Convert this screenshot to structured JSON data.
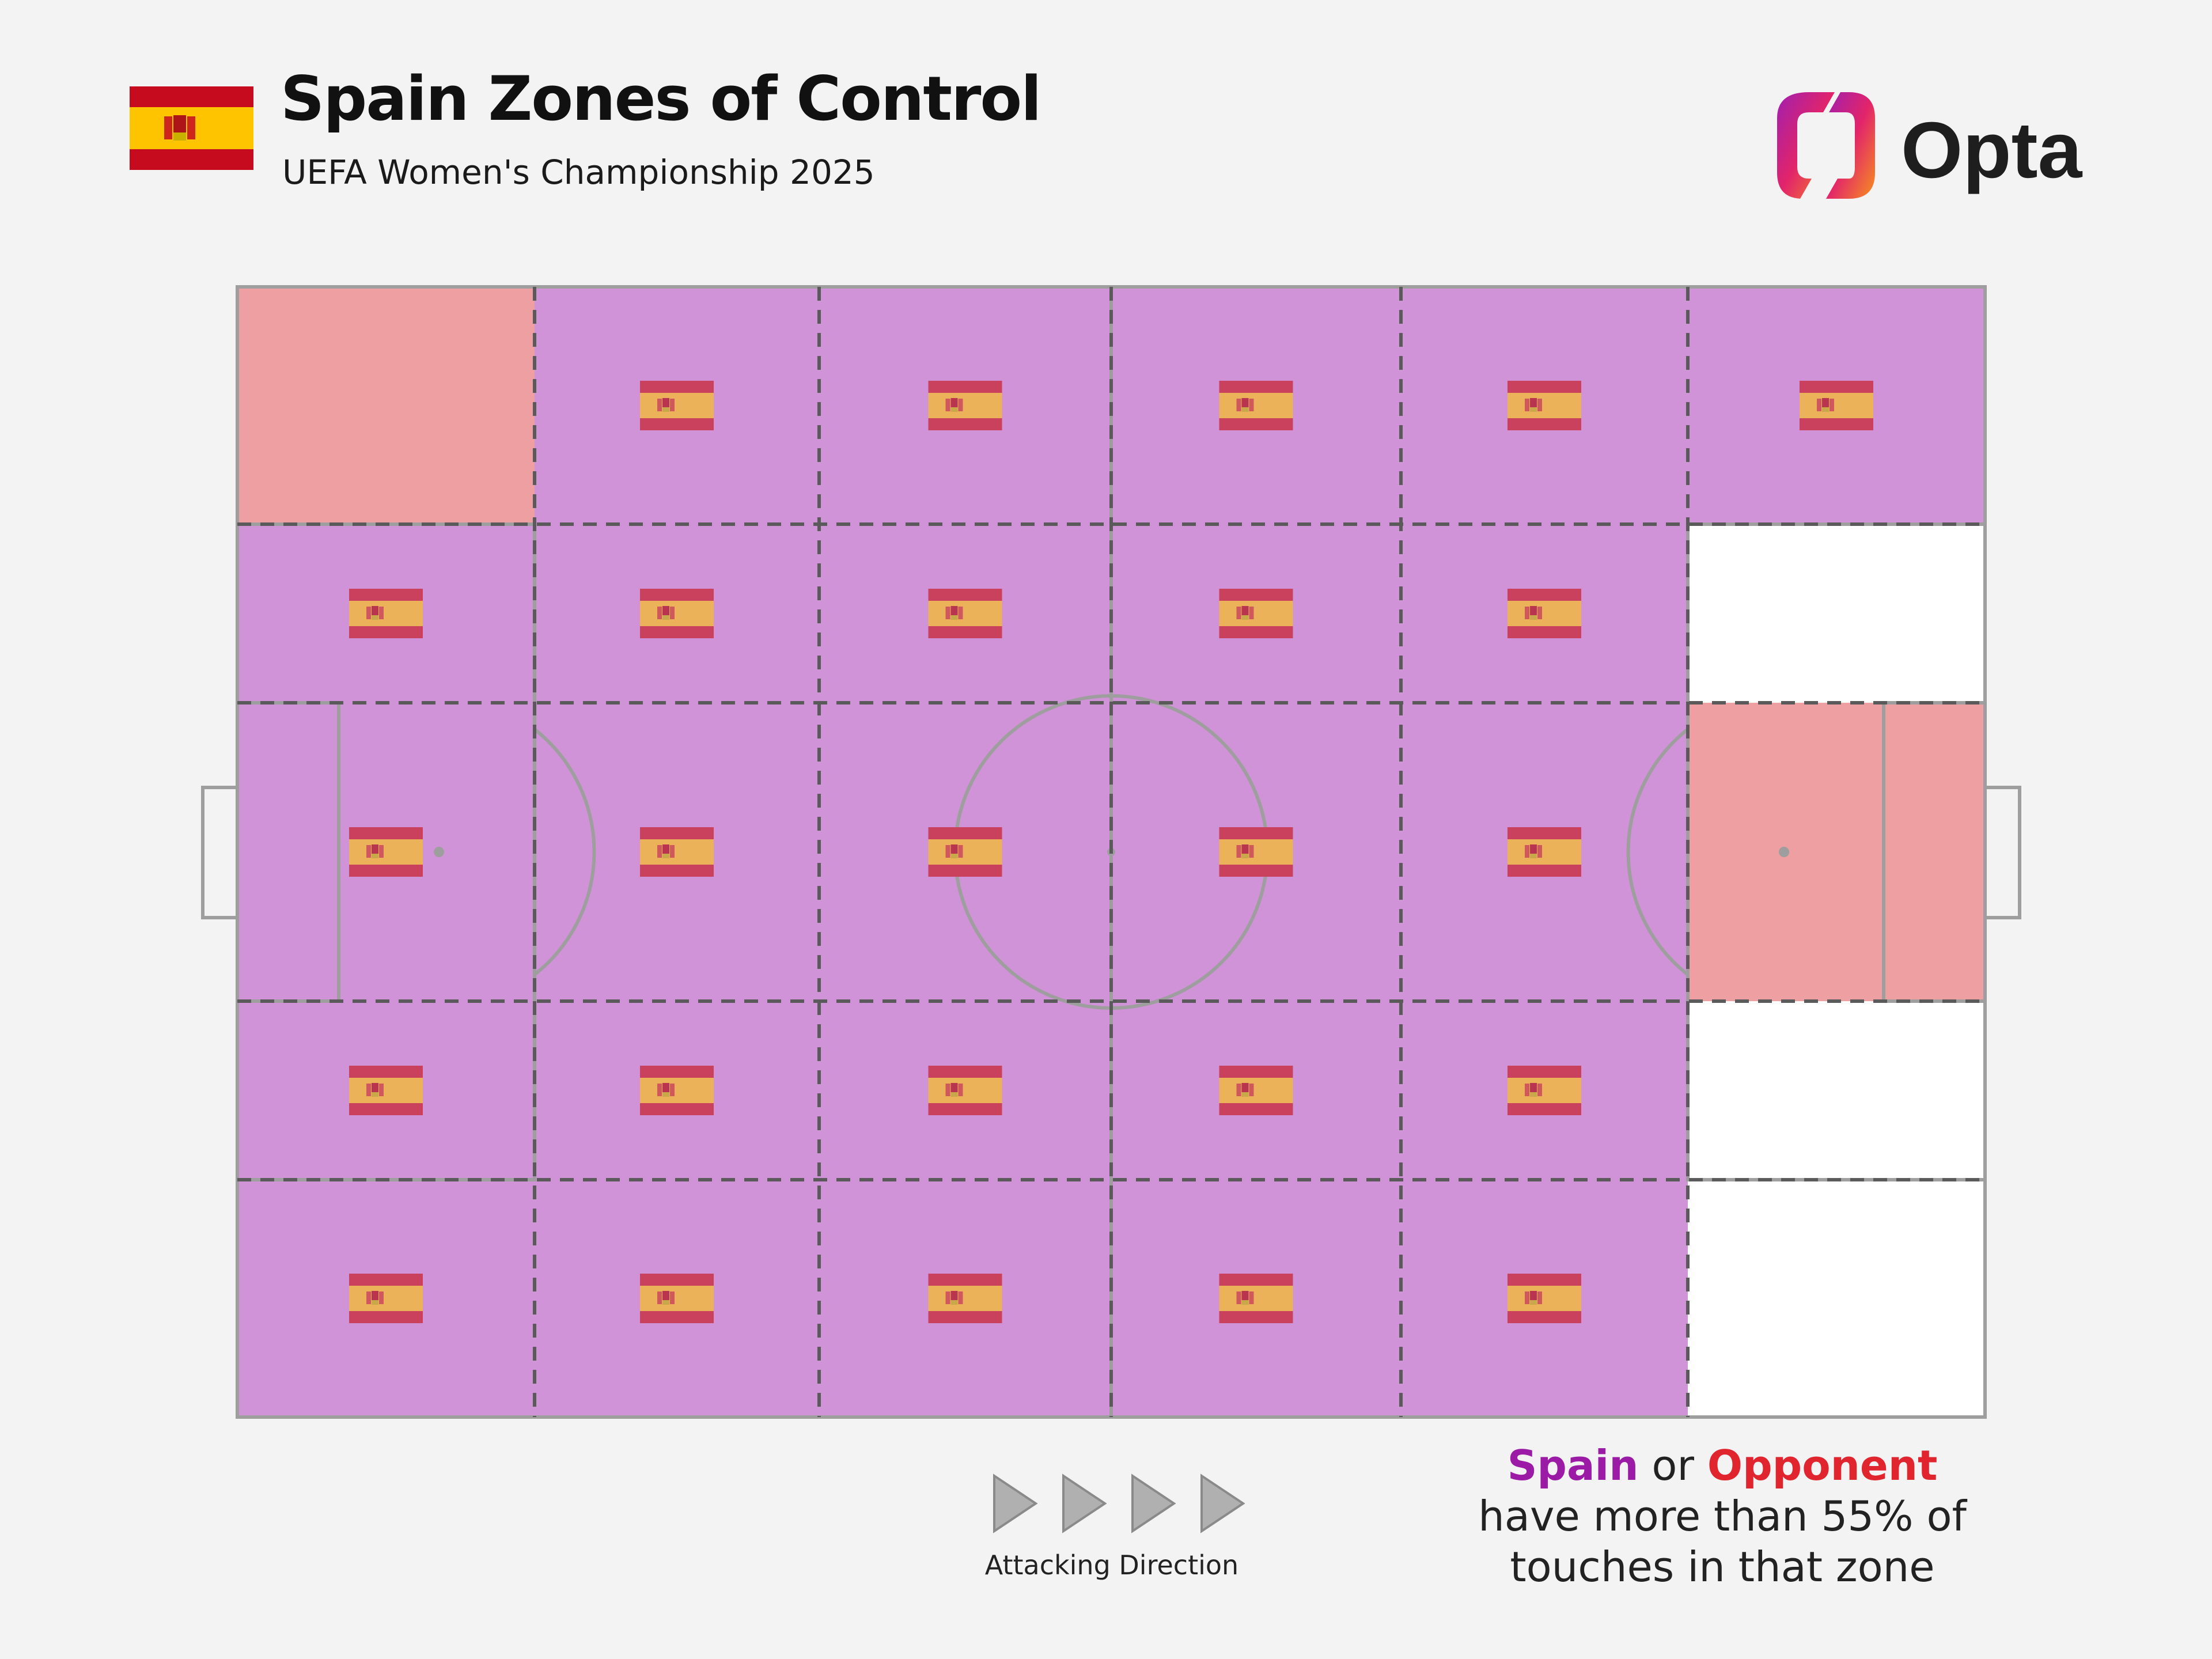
{
  "header": {
    "title": "Spain Zones of Control",
    "subtitle": "UEFA Women's Championship 2025",
    "flag_icon": "spain-flag-icon"
  },
  "logo": {
    "text": "Opta",
    "icon": "opta-logo-icon"
  },
  "pitch": {
    "rows": 5,
    "cols": 6,
    "controller_grid": [
      [
        "opponent",
        "spain",
        "spain",
        "spain",
        "spain",
        "spain"
      ],
      [
        "spain",
        "spain",
        "spain",
        "spain",
        "spain",
        "none"
      ],
      [
        "spain",
        "spain",
        "spain",
        "spain",
        "spain",
        "opponent"
      ],
      [
        "spain",
        "spain",
        "spain",
        "spain",
        "spain",
        "none"
      ],
      [
        "spain",
        "spain",
        "spain",
        "spain",
        "spain",
        "none"
      ]
    ],
    "colors": {
      "spain_zone": "#d193d7",
      "opponent_zone": "#ed9fa2",
      "neutral_zone": "#ffffff",
      "lines": "#9e9e9e",
      "zone_dash": "#5a5a5a"
    },
    "zone_marker_icon": "spain-flag-icon"
  },
  "attacking_direction": {
    "label": "Attacking Direction",
    "icon": "arrow-right-icon"
  },
  "legend": {
    "team": "Spain",
    "connector": "or",
    "opponent": "Opponent",
    "line2": "have more than 55% of",
    "line3": "touches in that zone",
    "team_color": "#9b1aa6",
    "opponent_color": "#e0252f"
  }
}
